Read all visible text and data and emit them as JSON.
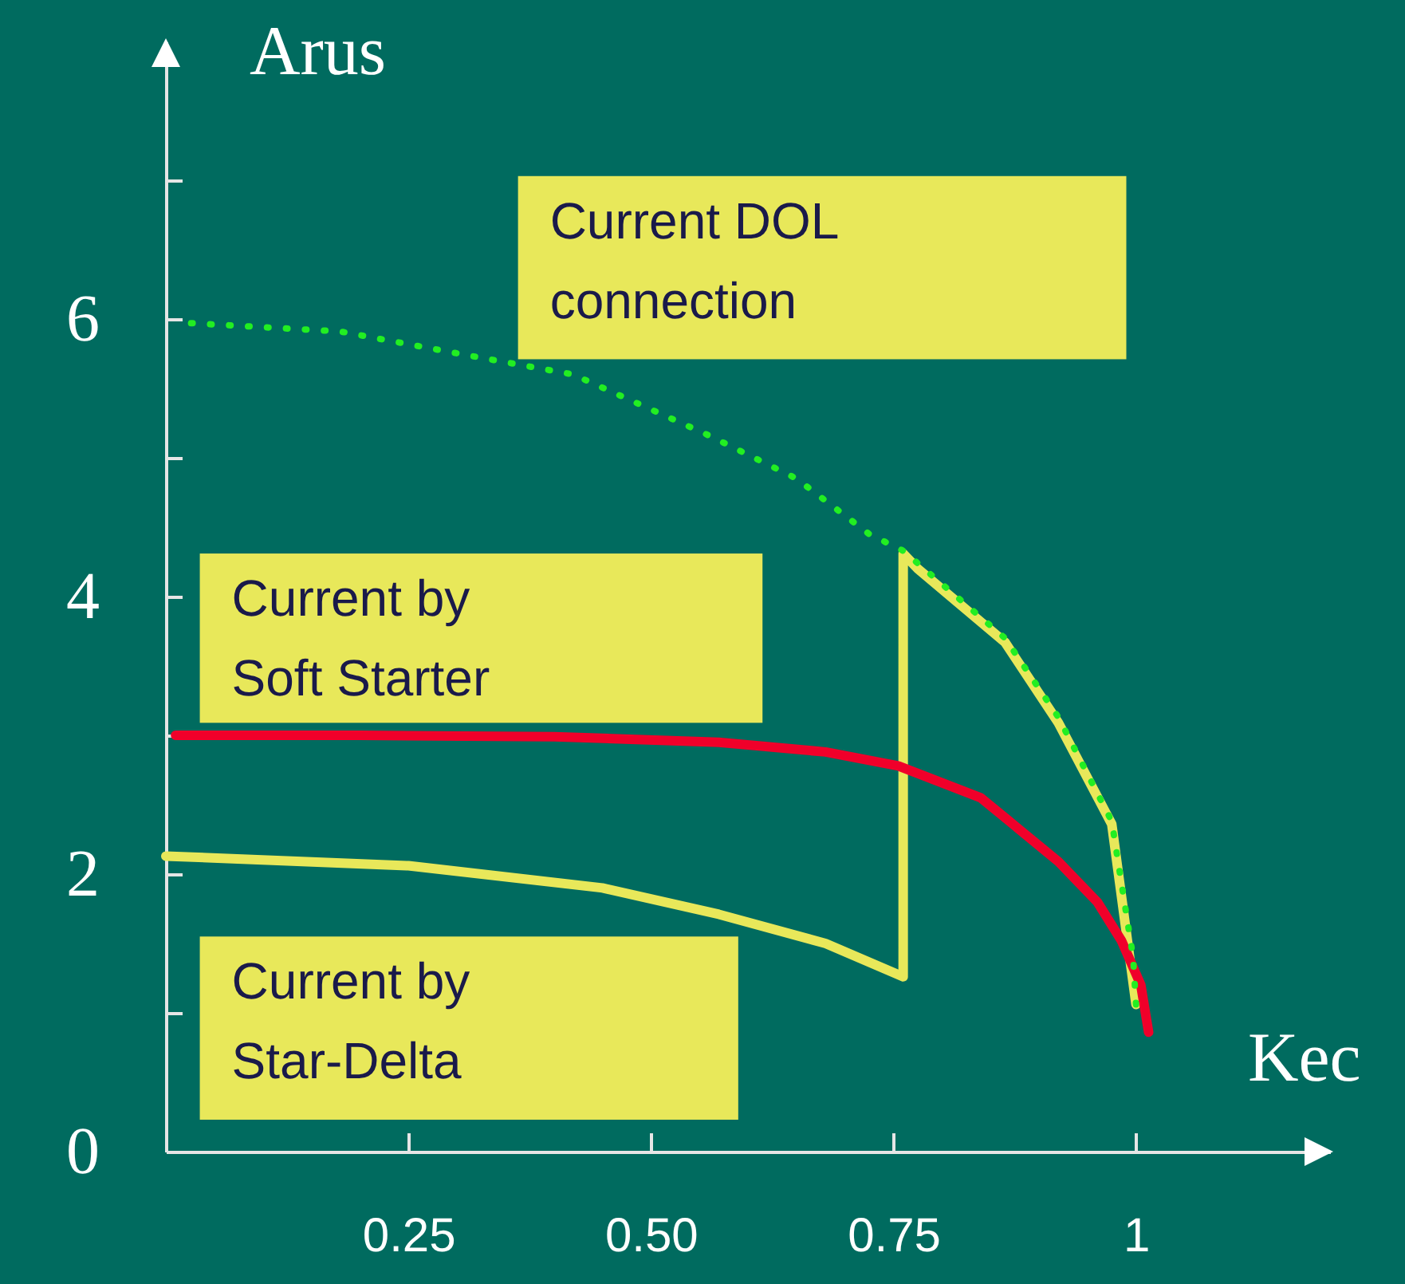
{
  "chart_data": {
    "type": "line",
    "xlabel": "Kec",
    "ylabel": "Arus",
    "xlim": [
      0,
      1.2
    ],
    "ylim": [
      0,
      8
    ],
    "xticks": [
      0.25,
      {
        "value": 0.5,
        "label": "0.50"
      },
      0.75,
      1
    ],
    "yticks": [
      0,
      {
        "value": 1,
        "label": null
      },
      2,
      {
        "value": 3,
        "label": null
      },
      4,
      {
        "value": 5,
        "label": null
      },
      6,
      {
        "value": 7,
        "label": null
      }
    ],
    "series": [
      {
        "name": "Current DOL connection",
        "color": "#22ee22",
        "line_style": "dotted",
        "x": [
          0.026,
          0.18,
          0.31,
          0.42,
          0.56,
          0.65,
          0.725,
          0.76,
          0.865,
          0.92,
          0.975,
          0.997,
          1.0
        ],
        "values": [
          5.97,
          5.91,
          5.74,
          5.6,
          5.16,
          4.85,
          4.45,
          4.33,
          3.7,
          3.13,
          2.38,
          1.4,
          1.06
        ]
      },
      {
        "name": "Current by Soft Starter",
        "color": "#f0002a",
        "line_style": "solid",
        "x": [
          0.01,
          0.2,
          0.4,
          0.57,
          0.68,
          0.755,
          0.84,
          0.92,
          0.96,
          0.985,
          1.005,
          1.013
        ],
        "values": [
          3.0,
          3.0,
          2.99,
          2.95,
          2.88,
          2.78,
          2.55,
          2.09,
          1.8,
          1.52,
          1.2,
          0.86
        ]
      },
      {
        "name": "Current by Star-Delta",
        "color": "#e8e85a",
        "line_style": "solid",
        "x": [
          0,
          0.25,
          0.45,
          0.57,
          0.68,
          0.76,
          0.76,
          0.775,
          0.865,
          0.92,
          0.975,
          1.0
        ],
        "values": [
          2.13,
          2.06,
          1.9,
          1.71,
          1.5,
          1.26,
          4.31,
          4.2,
          3.67,
          3.09,
          2.36,
          1.06
        ]
      }
    ]
  }
}
